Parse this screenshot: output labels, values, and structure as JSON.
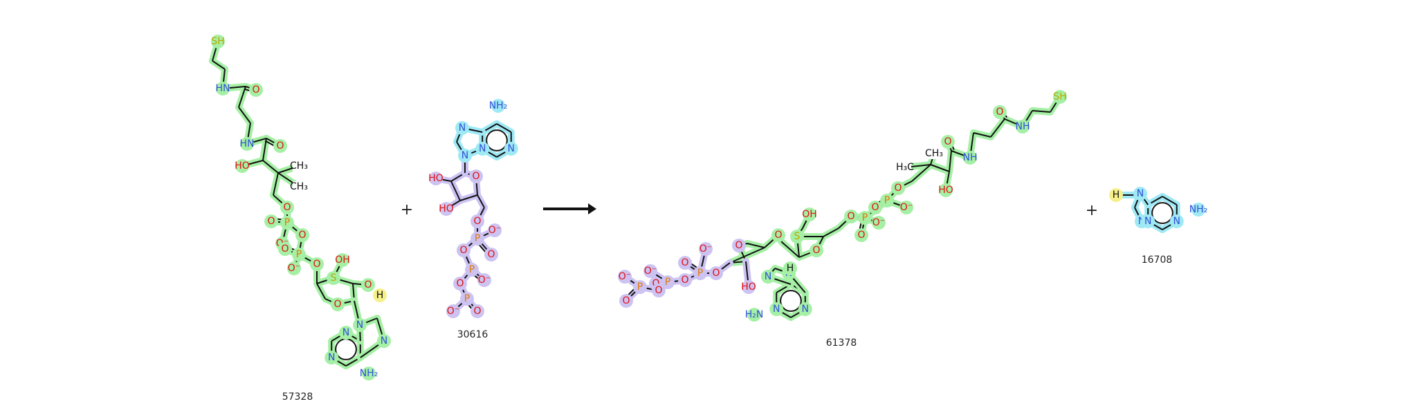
{
  "reaction": {
    "plus_sign": "+",
    "molecules": [
      {
        "id": "57328",
        "highlight": "#a6f0a6"
      },
      {
        "id": "30616",
        "highlight": "#cdc3f2"
      },
      {
        "id": "61378",
        "highlight": "#a6f0a6"
      },
      {
        "id": "16708",
        "highlight": "#9fe9f5"
      }
    ]
  },
  "colors": {
    "bond": "#111111",
    "nitrogen": "#2f50d8",
    "oxygen": "#e01010",
    "sulfur": "#b8a800",
    "phosphorus": "#e07a00",
    "carbon_text": "#111111",
    "hydrogen_highlight": "#f5f08a"
  },
  "atom_labels": {
    "sh": "SH",
    "hn": "HN",
    "nh": "NH",
    "o": "O",
    "o_minus": "O⁻",
    "ho": "HO",
    "oh": "OH",
    "ch3": "CH₃",
    "h3c": "H₃C",
    "p": "P",
    "s": "S",
    "n": "N",
    "h": "H",
    "nh2": "NH₂",
    "h2n": "H₂N"
  }
}
